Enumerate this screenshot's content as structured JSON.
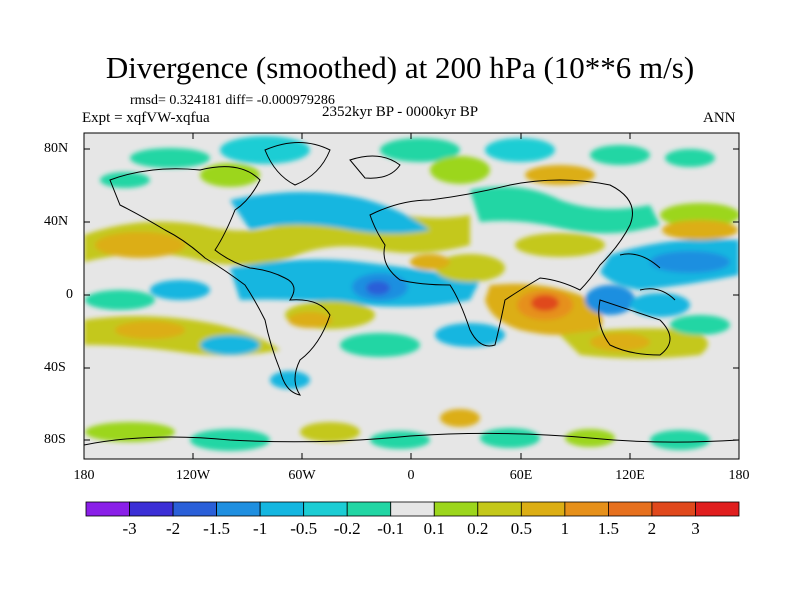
{
  "title": "Divergence (smoothed) at 200 hPa (10**6 m/s)",
  "stats": "rmsd= 0.324181 diff= -0.000979286",
  "experiment": "Expt = xqfVW-xqfua",
  "period": "2352kyr BP - 0000kyr BP",
  "season": "ANN",
  "y_axis_labels": [
    "80N",
    "40N",
    "0",
    "40S",
    "80S"
  ],
  "x_axis_labels": [
    "180",
    "120W",
    "60W",
    "0",
    "60E",
    "120E",
    "180"
  ],
  "colorbar": {
    "labels": [
      "-3",
      "-2",
      "-1.5",
      "-1",
      "-0.5",
      "-0.2",
      "-0.1",
      "0.1",
      "0.2",
      "0.5",
      "1",
      "1.5",
      "2",
      "3"
    ],
    "colors": [
      "#8a1fe8",
      "#3c2fd6",
      "#2a5fd8",
      "#1f8fe0",
      "#14b6e0",
      "#1ccdd4",
      "#22d6a4",
      "#e6e6e6",
      "#9cd61c",
      "#c4c81a",
      "#dcae14",
      "#e6901a",
      "#e6701e",
      "#e0481c",
      "#e01e1e"
    ]
  }
}
